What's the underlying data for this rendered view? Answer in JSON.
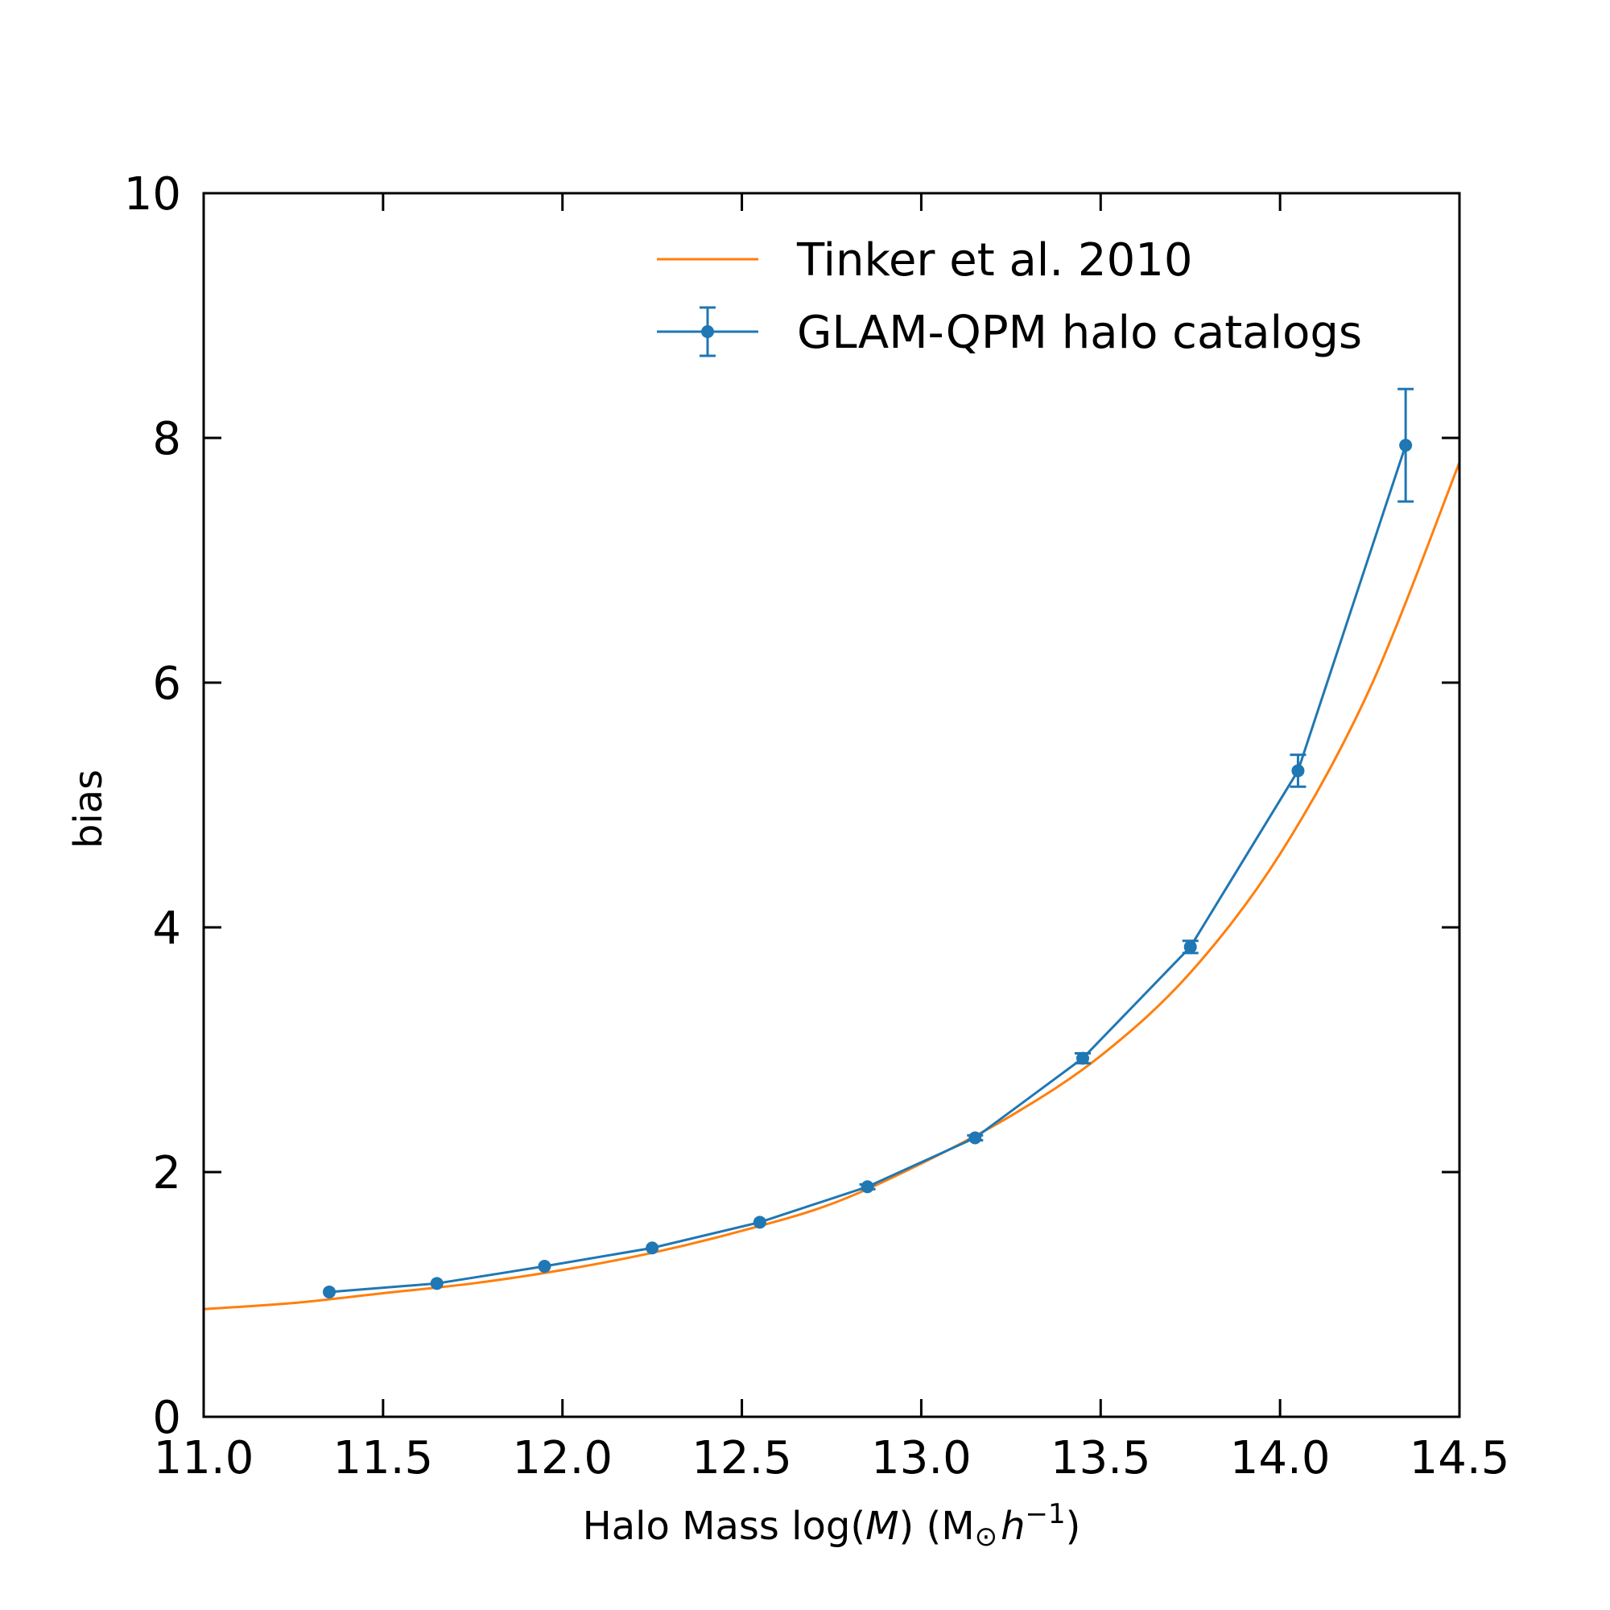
{
  "chart_data": {
    "type": "line",
    "title": "",
    "xlabel": "Halo Mass log(M) (M⊙h⁻¹)",
    "xlabel_parts": {
      "prefix": "Halo Mass log(",
      "var": "M",
      "mid": ") (M",
      "sun": "⊙",
      "h": "h",
      "exp": "−1",
      "suffix": ")"
    },
    "ylabel": "bias",
    "xlim": [
      11.0,
      14.5
    ],
    "ylim": [
      0,
      10
    ],
    "xticks": [
      11.0,
      11.5,
      12.0,
      12.5,
      13.0,
      13.5,
      14.0,
      14.5
    ],
    "xtick_labels": [
      "11.0",
      "11.5",
      "12.0",
      "12.5",
      "13.0",
      "13.5",
      "14.0",
      "14.5"
    ],
    "yticks": [
      0,
      2,
      4,
      6,
      8,
      10
    ],
    "ytick_labels": [
      "0",
      "2",
      "4",
      "6",
      "8",
      "10"
    ],
    "legend_position": "top-right",
    "series": [
      {
        "name": "Tinker et al. 2010",
        "kind": "line",
        "color": "#ff7f0e",
        "x": [
          11.0,
          11.25,
          11.5,
          11.75,
          12.0,
          12.25,
          12.5,
          12.75,
          13.0,
          13.25,
          13.5,
          13.75,
          14.0,
          14.25,
          14.5
        ],
        "y": [
          0.88,
          0.93,
          1.01,
          1.09,
          1.2,
          1.34,
          1.52,
          1.74,
          2.07,
          2.46,
          2.95,
          3.63,
          4.6,
          5.95,
          7.8
        ]
      },
      {
        "name": "GLAM-QPM halo catalogs",
        "kind": "errorbar",
        "color": "#1f77b4",
        "x": [
          11.35,
          11.65,
          11.95,
          12.25,
          12.55,
          12.85,
          13.15,
          13.45,
          13.75,
          14.05,
          14.35
        ],
        "y": [
          1.02,
          1.09,
          1.23,
          1.38,
          1.59,
          1.88,
          2.28,
          2.93,
          3.84,
          5.28,
          7.94
        ],
        "yerr": [
          0.0,
          0.0,
          0.0,
          0.0,
          0.0,
          0.02,
          0.02,
          0.04,
          0.05,
          0.13,
          0.46
        ]
      }
    ]
  }
}
